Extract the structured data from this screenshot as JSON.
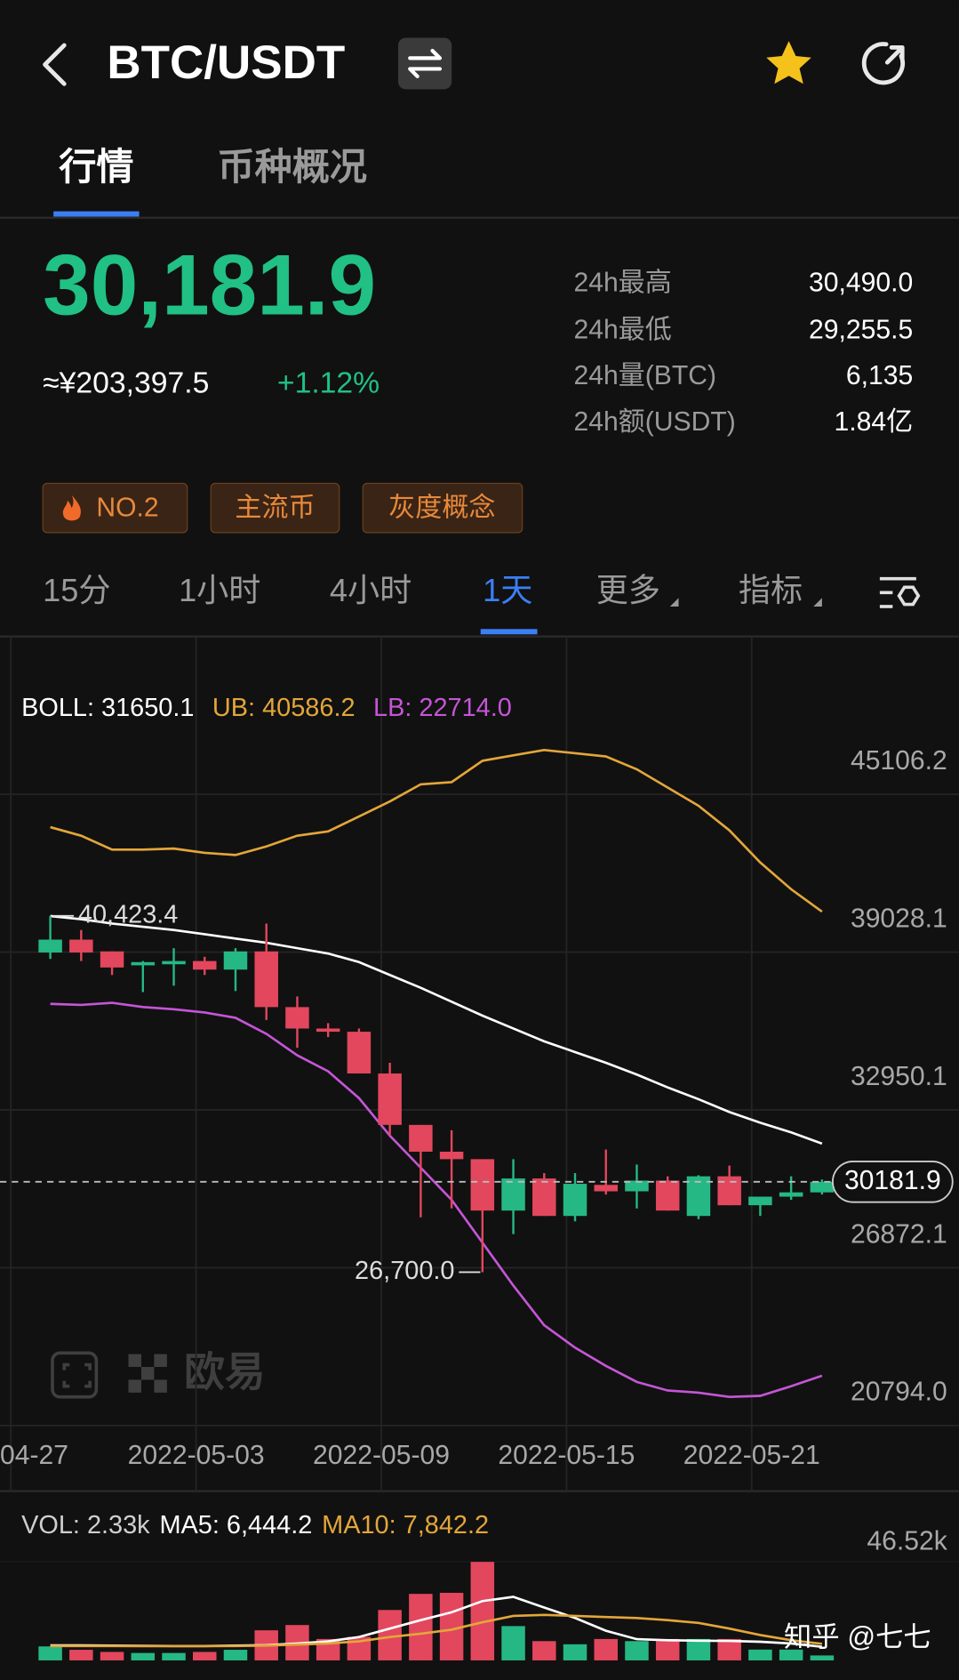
{
  "header": {
    "title": "BTC/USDT"
  },
  "tabs": [
    "行情",
    "币种概况"
  ],
  "price": {
    "last": "30,181.9",
    "cny": "≈¥203,397.5",
    "change": "+1.12%"
  },
  "stats": [
    {
      "label": "24h最高",
      "value": "30,490.0"
    },
    {
      "label": "24h最低",
      "value": "29,255.5"
    },
    {
      "label": "24h量(BTC)",
      "value": "6,135"
    },
    {
      "label": "24h额(USDT)",
      "value": "1.84亿"
    }
  ],
  "tags": [
    "NO.2",
    "主流币",
    "灰度概念"
  ],
  "intervals": [
    "15分",
    "1小时",
    "4小时",
    "1天",
    "更多",
    "指标"
  ],
  "logo": "欧易",
  "watermark": "知乎 @七七",
  "chart_data": [
    {
      "type": "candlestick",
      "categories": [
        "04-27",
        null,
        null,
        null,
        null,
        null,
        "2022-05-03",
        null,
        null,
        null,
        null,
        null,
        "2022-05-09",
        null,
        null,
        null,
        null,
        null,
        "2022-05-15",
        null,
        null,
        null,
        null,
        null,
        "2022-05-21",
        null,
        null
      ],
      "ohlc": {
        "open": [
          null,
          39014,
          39509,
          39055,
          38519,
          38560,
          38684,
          38354,
          39055,
          36910,
          36085,
          35962,
          34353,
          32373,
          31341,
          31053,
          29073,
          30310,
          28866,
          30063,
          29815,
          30228,
          28866,
          30393,
          29279,
          29609,
          29774
        ],
        "high": [
          null,
          40423.4,
          39880,
          39055,
          38684,
          39179,
          38849,
          39179,
          40128,
          37322,
          36291,
          36085,
          34765,
          32373,
          32166,
          31053,
          31053,
          30516,
          30516,
          31424,
          30846,
          30393,
          30434,
          30805,
          29609,
          30393,
          30270
        ],
        "low": [
          null,
          38766,
          38684,
          38147,
          37488,
          37735,
          38147,
          37529,
          36415,
          35343,
          35755,
          34353,
          31960,
          28815,
          29155,
          26700.0,
          28165,
          28866,
          28660,
          29691,
          29155,
          29073,
          28742,
          29279,
          28866,
          29485,
          29691
        ],
        "close": [
          null,
          39509,
          39014,
          38436,
          38643,
          38684,
          38354,
          39055,
          36910,
          36085,
          35962,
          34353,
          32373,
          31341,
          31053,
          29073,
          30310,
          28866,
          30104,
          29815,
          30228,
          29073,
          30393,
          29279,
          29609,
          29774,
          30181.9
        ]
      },
      "up_color": "#25b884",
      "down_color": "#e2475d",
      "high_label": "40,423.4",
      "low_label": "26,700.0",
      "series": [
        {
          "label": "BOLL: 31650.1",
          "color": "#ffffff",
          "values": [
            null,
            40416,
            40293,
            40128,
            40004,
            39880,
            39715,
            39550,
            39385,
            39179,
            38973,
            38643,
            38148,
            37653,
            37116,
            36580,
            36085,
            35590,
            35178,
            34765,
            34311,
            33816,
            33363,
            32868,
            32455,
            32084,
            31650.1
          ]
        },
        {
          "label": "UB: 40586.2",
          "color": "#e3a63a",
          "values": [
            null,
            43840,
            43510,
            42974,
            42974,
            43015,
            42850,
            42768,
            43098,
            43510,
            43675,
            44253,
            44830,
            45490,
            45573,
            46398,
            46604,
            46810,
            46686,
            46563,
            46068,
            45366,
            44665,
            43716,
            42479,
            41447,
            40586.2
          ]
        },
        {
          "label": "LB: 22714.0",
          "color": "#c456d6",
          "values": [
            null,
            37034,
            36993,
            37075,
            36910,
            36828,
            36704,
            36498,
            35879,
            35054,
            34435,
            33404,
            31960,
            30723,
            29485,
            27835,
            26185,
            24659,
            23793,
            23091,
            22473,
            22143,
            22060,
            21895,
            21936,
            22308,
            22714.0
          ]
        }
      ],
      "ylim": [
        20794.0,
        51184.25
      ],
      "yticks": [
        {
          "value": 20794.0,
          "label": "20794.0"
        },
        26872.1,
        32950.1,
        39028.1,
        45106.2
      ],
      "grid": true
    },
    {
      "type": "bar",
      "series": [
        {
          "label": "VOL: 2.33k",
          "values": [
            null,
            6600,
            5000,
            4000,
            3500,
            3500,
            4000,
            5000,
            14200,
            16700,
            10100,
            11100,
            23800,
            31400,
            31900,
            46520,
            16200,
            9100,
            7600,
            10100,
            9100,
            10100,
            10100,
            10100,
            5100,
            5100,
            2330
          ]
        },
        {
          "label": "MA5: 6,444.2",
          "color": "#ffffff",
          "values": [
            null,
            7100,
            7100,
            7000,
            6900,
            6800,
            6800,
            7000,
            7200,
            8000,
            9000,
            11000,
            15000,
            19000,
            22700,
            28000,
            30000,
            25000,
            20000,
            14000,
            10000,
            9500,
            9300,
            9200,
            8800,
            8000,
            6444.2
          ]
        },
        {
          "label": "MA10: 7,842.2",
          "color": "#e3a63a",
          "values": [
            null,
            6800,
            6800,
            6800,
            6700,
            6700,
            6700,
            6800,
            7000,
            7500,
            8000,
            9000,
            11000,
            12600,
            14500,
            18000,
            21000,
            21500,
            21000,
            20500,
            20000,
            19000,
            17700,
            15000,
            12000,
            9500,
            7842.2
          ]
        }
      ],
      "ylim": [
        0,
        46520
      ],
      "yticks": [
        {
          "value": 46520,
          "label": "46.52k"
        }
      ]
    }
  ]
}
